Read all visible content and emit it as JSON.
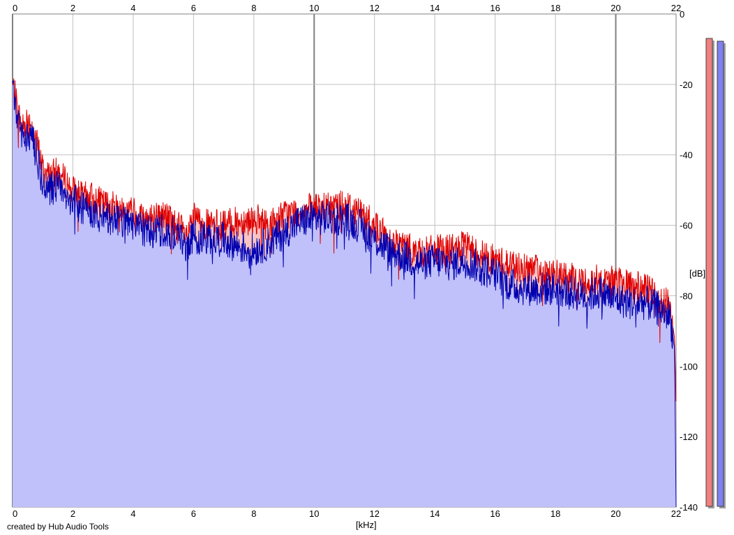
{
  "footer": {
    "credit": "created by Hub Audio Tools"
  },
  "colors": {
    "background": "#ffffff",
    "grid": "#c0c0c0",
    "grid_major": "#808080",
    "fill_blue": "#c0c0fa",
    "fill_red": "#f7c3c3",
    "line_red": "#e00000",
    "line_blue": "#0000b0",
    "meter_red": "#f08080",
    "meter_blue": "#8080f0",
    "meter_shadow": "#a0a0a0"
  },
  "chart_data": {
    "type": "area",
    "xlabel": "[kHz]",
    "ylabel": "[dB]",
    "xlim": [
      0,
      22
    ],
    "ylim": [
      -140,
      0
    ],
    "x_ticks": [
      "0",
      "2",
      "4",
      "6",
      "8",
      "10",
      "12",
      "14",
      "16",
      "18",
      "20",
      "22"
    ],
    "y_ticks": [
      "0",
      "-20",
      "-40",
      "-60",
      "-80",
      "-100",
      "-120",
      "-140"
    ],
    "grid": true,
    "legend": "none",
    "x": [
      0,
      0.1,
      0.2,
      0.3,
      0.5,
      0.7,
      0.9,
      1.0,
      1.2,
      1.5,
      1.8,
      2.0,
      2.3,
      2.6,
      3.0,
      3.5,
      4.0,
      4.5,
      5.0,
      5.5,
      5.8,
      6.0,
      6.5,
      7.0,
      7.5,
      8.0,
      8.5,
      9.0,
      9.5,
      10.0,
      10.5,
      11.0,
      11.5,
      12.0,
      12.5,
      13.0,
      13.5,
      14.0,
      14.5,
      15.0,
      15.5,
      16.0,
      16.5,
      17.0,
      17.5,
      18.0,
      18.5,
      19.0,
      19.5,
      20.0,
      20.5,
      21.0,
      21.5,
      21.8,
      21.95,
      22.0
    ],
    "series": [
      {
        "values": [
          -20,
          -24,
          -28,
          -32,
          -30,
          -33,
          -40,
          -44,
          -46,
          -45,
          -48,
          -50,
          -52,
          -52,
          -54,
          -55,
          -56,
          -58,
          -57,
          -60,
          -64,
          -58,
          -60,
          -60,
          -59,
          -58,
          -60,
          -57,
          -56,
          -55,
          -55,
          -54,
          -56,
          -60,
          -64,
          -66,
          -68,
          -67,
          -67,
          -66,
          -68,
          -70,
          -71,
          -72,
          -73,
          -74,
          -75,
          -76,
          -75,
          -76,
          -77,
          -78,
          -81,
          -83,
          -92,
          -110
        ]
      },
      {
        "values": [
          -22,
          -26,
          -31,
          -35,
          -34,
          -37,
          -44,
          -48,
          -50,
          -49,
          -52,
          -53,
          -55,
          -56,
          -58,
          -59,
          -60,
          -62,
          -61,
          -63,
          -66,
          -63,
          -64,
          -64,
          -66,
          -67,
          -65,
          -62,
          -59,
          -58,
          -58,
          -58,
          -60,
          -64,
          -67,
          -69,
          -71,
          -70,
          -71,
          -70,
          -72,
          -74,
          -77,
          -78,
          -78,
          -78,
          -79,
          -80,
          -79,
          -81,
          -82,
          -82,
          -84,
          -86,
          -95,
          -140
        ]
      }
    ]
  }
}
